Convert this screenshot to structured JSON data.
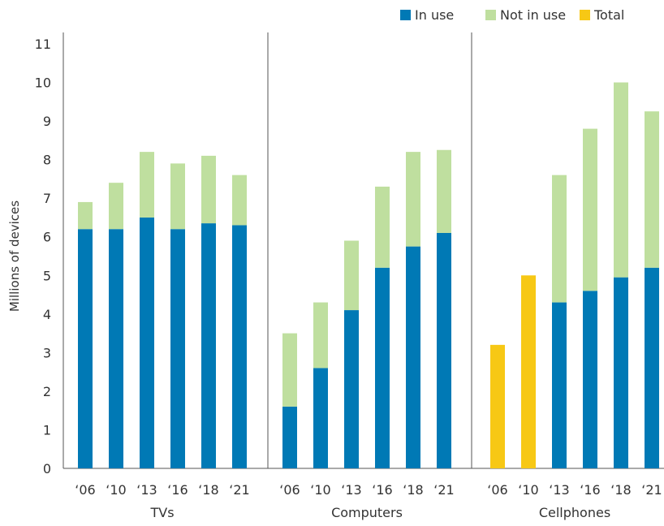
{
  "chart_data": {
    "type": "bar",
    "stacked": true,
    "ylabel": "Millions of devices",
    "ylim": [
      0,
      11
    ],
    "yticks": [
      "0",
      "1",
      "2",
      "3",
      "4",
      "5",
      "6",
      "7",
      "8",
      "9",
      "10",
      "11"
    ],
    "grid": false,
    "legend_position": "top-right",
    "legend": [
      {
        "name": "In use",
        "color": "#0079b5"
      },
      {
        "name": "Not in use",
        "color": "#bfdf9f"
      },
      {
        "name": "Total",
        "color": "#f7c815"
      }
    ],
    "groups": [
      {
        "name": "TVs",
        "categories": [
          "‘06",
          "‘10",
          "‘13",
          "‘16",
          "‘18",
          "‘21"
        ],
        "series": [
          {
            "name": "In use",
            "values": [
              6.2,
              6.2,
              6.5,
              6.2,
              6.35,
              6.3
            ]
          },
          {
            "name": "Not in use",
            "values": [
              0.7,
              1.2,
              1.7,
              1.7,
              1.75,
              1.3
            ]
          },
          {
            "name": "Total",
            "values": [
              0,
              0,
              0,
              0,
              0,
              0
            ]
          }
        ]
      },
      {
        "name": "Computers",
        "categories": [
          "‘06",
          "‘10",
          "‘13",
          "‘16",
          "‘18",
          "‘21"
        ],
        "series": [
          {
            "name": "In use",
            "values": [
              1.6,
              2.6,
              4.1,
              5.2,
              5.75,
              6.1
            ]
          },
          {
            "name": "Not in use",
            "values": [
              1.9,
              1.7,
              1.8,
              2.1,
              2.45,
              2.15
            ]
          },
          {
            "name": "Total",
            "values": [
              0,
              0,
              0,
              0,
              0,
              0
            ]
          }
        ]
      },
      {
        "name": "Cellphones",
        "categories": [
          "‘06",
          "‘10",
          "‘13",
          "‘16",
          "‘18",
          "‘21"
        ],
        "series": [
          {
            "name": "In use",
            "values": [
              0,
              0,
              4.3,
              4.6,
              4.95,
              5.2
            ]
          },
          {
            "name": "Not in use",
            "values": [
              0,
              0,
              3.3,
              4.2,
              5.05,
              4.05
            ]
          },
          {
            "name": "Total",
            "values": [
              3.2,
              5.0,
              0,
              0,
              0,
              0
            ]
          }
        ]
      }
    ]
  }
}
